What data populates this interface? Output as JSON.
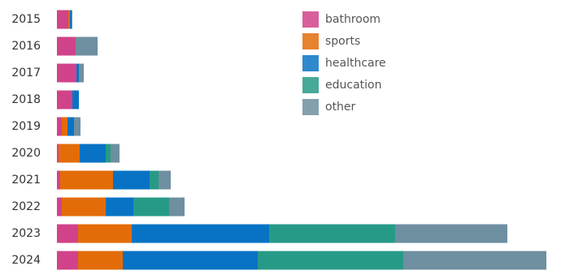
{
  "chart_data": {
    "type": "stacked-barh",
    "categories": [
      "2015",
      "2016",
      "2017",
      "2018",
      "2019",
      "2020",
      "2021",
      "2022",
      "2023",
      "2024"
    ],
    "series": [
      {
        "name": "bathroom",
        "color": "#d0438a",
        "values": [
          14,
          23,
          24,
          19,
          6,
          2,
          4,
          6,
          26,
          26
        ]
      },
      {
        "name": "sports",
        "color": "#e36c09",
        "values": [
          2,
          0,
          0,
          0,
          7,
          26,
          65,
          54,
          66,
          55
        ]
      },
      {
        "name": "healthcare",
        "color": "#0873c4",
        "values": [
          2,
          0,
          3,
          8,
          8,
          32,
          45,
          34,
          169,
          166
        ]
      },
      {
        "name": "education",
        "color": "#279a87",
        "values": [
          0,
          0,
          0,
          0,
          0,
          6,
          11,
          44,
          155,
          179
        ]
      },
      {
        "name": "other",
        "color": "#6e8fa0",
        "values": [
          1,
          27,
          6,
          0,
          8,
          11,
          15,
          19,
          138,
          176
        ]
      }
    ],
    "xlim": [
      0,
      602
    ],
    "legend": "upper-center"
  }
}
